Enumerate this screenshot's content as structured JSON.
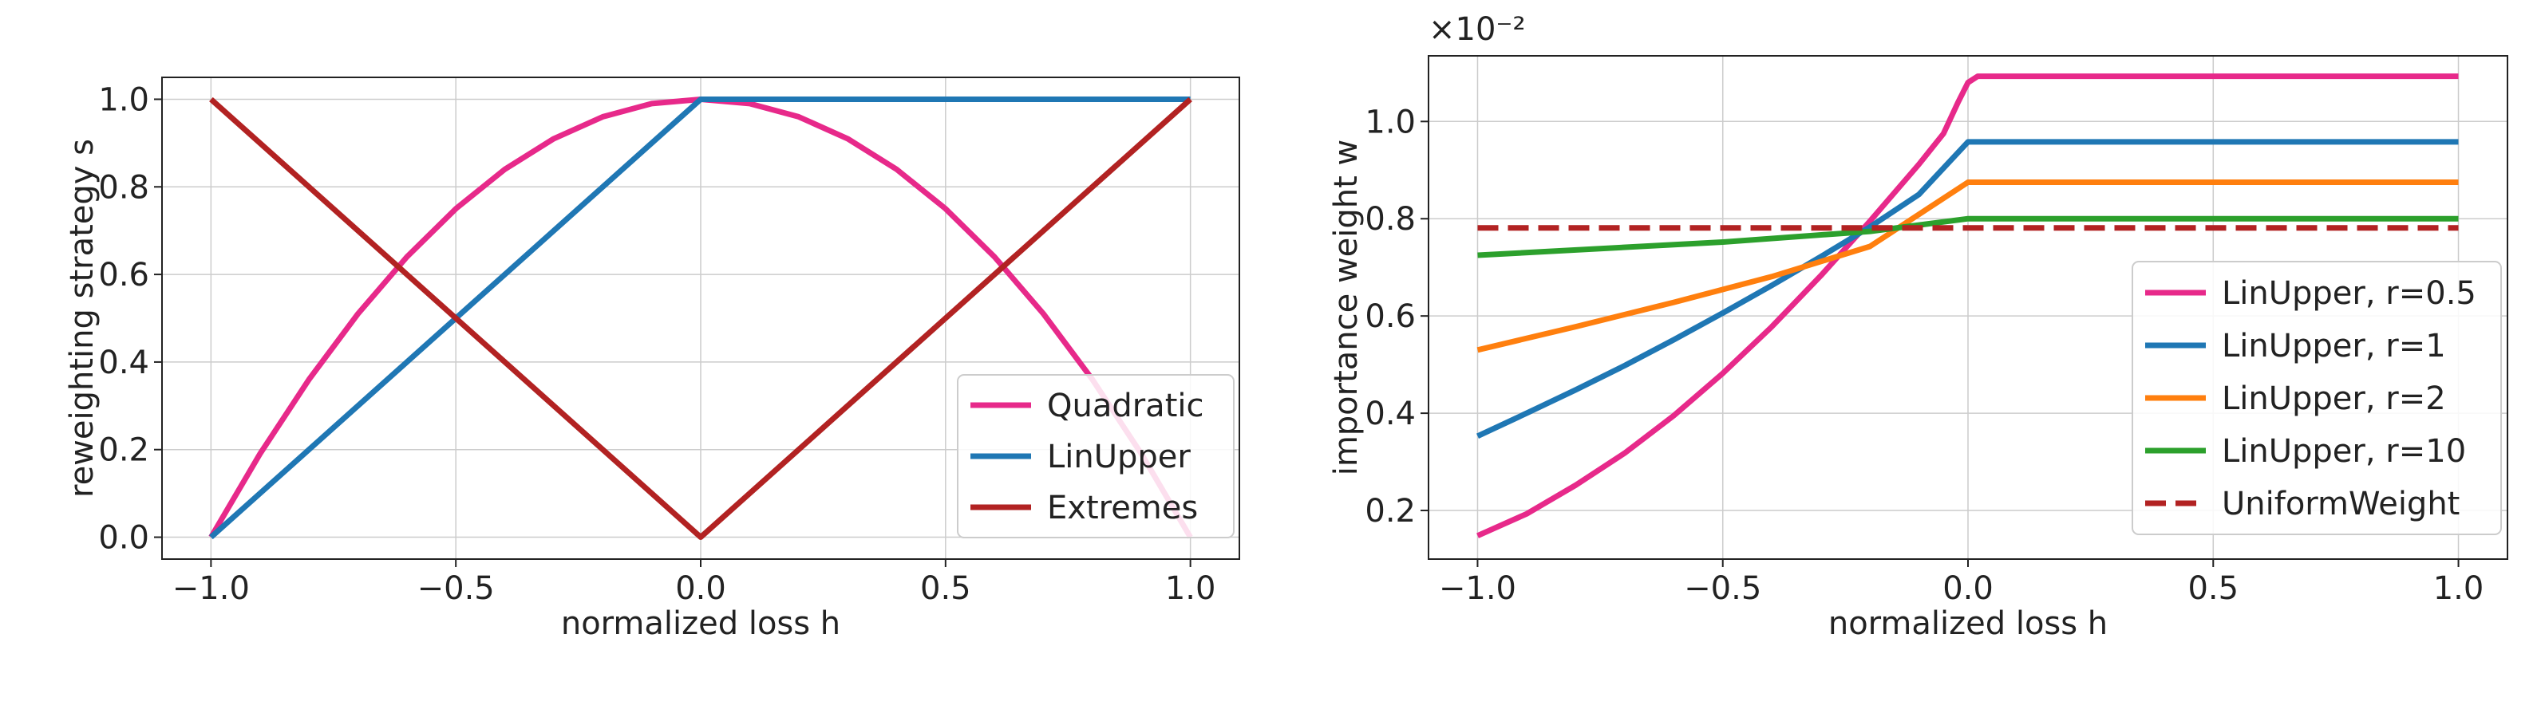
{
  "chart_data": [
    {
      "type": "line",
      "xlabel": "normalized loss h",
      "ylabel": "reweighting strategy s",
      "xlim": [
        -1.1,
        1.1
      ],
      "ylim": [
        -0.05,
        1.05
      ],
      "xticks": [
        -1.0,
        -0.5,
        0.0,
        0.5,
        1.0
      ],
      "xtick_labels": [
        "−1.0",
        "−0.5",
        "0.0",
        "0.5",
        "1.0"
      ],
      "yticks": [
        0.0,
        0.2,
        0.4,
        0.6,
        0.8,
        1.0
      ],
      "ytick_labels": [
        "0.0",
        "0.2",
        "0.4",
        "0.6",
        "0.8",
        "1.0"
      ],
      "grid": true,
      "legend": "lower-right",
      "series": [
        {
          "name": "Quadratic",
          "color": "#e7298a",
          "x": [
            -1.0,
            -0.9,
            -0.8,
            -0.7,
            -0.6,
            -0.5,
            -0.4,
            -0.3,
            -0.2,
            -0.1,
            0.0,
            0.1,
            0.2,
            0.3,
            0.4,
            0.5,
            0.6,
            0.7,
            0.8,
            0.9,
            1.0
          ],
          "y": [
            0.0,
            0.19,
            0.36,
            0.51,
            0.64,
            0.75,
            0.84,
            0.91,
            0.96,
            0.99,
            1.0,
            0.99,
            0.96,
            0.91,
            0.84,
            0.75,
            0.64,
            0.51,
            0.36,
            0.19,
            0.0
          ]
        },
        {
          "name": "LinUpper",
          "color": "#1f77b4",
          "x": [
            -1.0,
            0.0,
            1.0
          ],
          "y": [
            0.0,
            1.0,
            1.0
          ]
        },
        {
          "name": "Extremes",
          "color": "#b22222",
          "x": [
            -1.0,
            0.0,
            1.0
          ],
          "y": [
            1.0,
            0.0,
            1.0
          ]
        }
      ]
    },
    {
      "type": "line",
      "xlabel": "normalized loss h",
      "ylabel": "importance weight w",
      "offset_label": "×10⁻²",
      "xlim": [
        -1.1,
        1.1
      ],
      "ylim": [
        0.1,
        1.135
      ],
      "xticks": [
        -1.0,
        -0.5,
        0.0,
        0.5,
        1.0
      ],
      "xtick_labels": [
        "−1.0",
        "−0.5",
        "0.0",
        "0.5",
        "1.0"
      ],
      "yticks": [
        0.2,
        0.4,
        0.6,
        0.8,
        1.0
      ],
      "ytick_labels": [
        "0.2",
        "0.4",
        "0.6",
        "0.8",
        "1.0"
      ],
      "grid": true,
      "legend": "lower-right",
      "series": [
        {
          "name": "LinUpper, r=0.5",
          "color": "#e7298a",
          "dash": false,
          "x": [
            -1.0,
            -0.9,
            -0.8,
            -0.7,
            -0.6,
            -0.5,
            -0.4,
            -0.3,
            -0.2,
            -0.1,
            -0.05,
            -0.02,
            0.0,
            0.02,
            0.5,
            1.0
          ],
          "y": [
            0.148,
            0.193,
            0.252,
            0.318,
            0.395,
            0.482,
            0.578,
            0.683,
            0.795,
            0.912,
            0.975,
            1.04,
            1.08,
            1.093,
            1.093,
            1.093
          ]
        },
        {
          "name": "LinUpper, r=1",
          "color": "#1f77b4",
          "dash": false,
          "x": [
            -1.0,
            -0.9,
            -0.8,
            -0.7,
            -0.6,
            -0.5,
            -0.4,
            -0.3,
            -0.2,
            -0.1,
            0.0,
            0.5,
            1.0
          ],
          "y": [
            0.353,
            0.4,
            0.448,
            0.498,
            0.551,
            0.606,
            0.663,
            0.722,
            0.783,
            0.85,
            0.958,
            0.958,
            0.958
          ]
        },
        {
          "name": "LinUpper, r=2",
          "color": "#ff7f0e",
          "dash": false,
          "x": [
            -1.0,
            -0.8,
            -0.6,
            -0.4,
            -0.2,
            0.0,
            0.5,
            1.0
          ],
          "y": [
            0.53,
            0.578,
            0.628,
            0.681,
            0.743,
            0.875,
            0.875,
            0.875
          ]
        },
        {
          "name": "LinUpper, r=10",
          "color": "#2ca02c",
          "dash": false,
          "x": [
            -1.0,
            -0.5,
            -0.2,
            0.0,
            0.5,
            1.0
          ],
          "y": [
            0.725,
            0.752,
            0.774,
            0.8,
            0.8,
            0.8
          ]
        },
        {
          "name": "UniformWeight",
          "color": "#b22222",
          "dash": true,
          "x": [
            -1.0,
            1.0
          ],
          "y": [
            0.781,
            0.781
          ]
        }
      ]
    }
  ]
}
